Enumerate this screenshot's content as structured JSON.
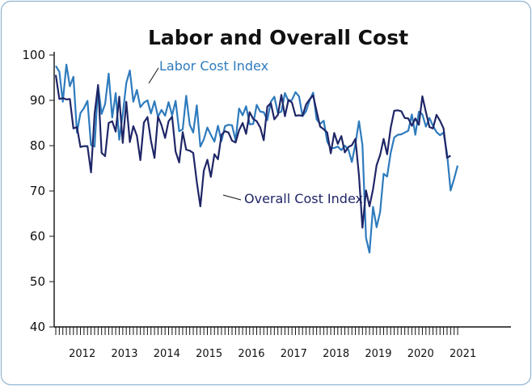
{
  "chart_data": {
    "type": "line",
    "title": "Labor and Overall Cost",
    "xlabel": "",
    "ylabel": "",
    "ylim": [
      40,
      100
    ],
    "yticks": [
      40,
      50,
      60,
      70,
      80,
      90,
      100
    ],
    "x_start": "2011-11",
    "grid": false,
    "years": [
      "2012",
      "2013",
      "2014",
      "2015",
      "2016",
      "2017",
      "2018",
      "2019",
      "2020",
      "2021"
    ],
    "series": [
      {
        "name": "Labor Cost Index",
        "color": "#2e7bbd",
        "values": [
          97.6,
          96.3,
          89.7,
          97.9,
          93.1,
          95.2,
          82.9,
          87.2,
          88.3,
          89.9,
          80.1,
          79.8,
          93.2,
          87.0,
          89.2,
          95.9,
          86.2,
          91.6,
          81.3,
          86.9,
          93.8,
          96.6,
          89.7,
          92.3,
          88.5,
          89.5,
          90.0,
          87.1,
          89.8,
          86.4,
          87.9,
          86.6,
          89.6,
          86.7,
          89.9,
          83.2,
          83.6,
          91.0,
          84.6,
          82.9,
          88.9,
          79.8,
          81.4,
          84.0,
          82.4,
          80.9,
          84.4,
          81.0,
          84.3,
          84.6,
          84.5,
          81.1,
          88.2,
          86.7,
          88.7,
          84.7,
          84.8,
          89.0,
          87.5,
          87.4,
          85.6,
          89.7,
          90.8,
          87.2,
          87.5,
          91.6,
          89.8,
          90.1,
          91.8,
          90.9,
          86.5,
          87.6,
          90.0,
          91.7,
          85.8,
          84.8,
          85.5,
          80.9,
          79.4,
          79.5,
          79.8,
          79.0,
          80.0,
          79.1,
          76.4,
          80.4,
          85.4,
          80.1,
          59.7,
          56.4,
          66.5,
          62.0,
          65.3,
          73.8,
          73.2,
          78.4,
          81.8,
          82.4,
          82.5,
          82.9,
          83.3,
          86.9,
          82.4,
          87.5,
          86.9,
          84.2,
          86.1,
          84.4,
          83.0,
          82.3,
          82.9,
          78.1,
          70.1,
          72.7,
          75.6
        ],
        "label_text": "Labor Cost Index"
      },
      {
        "name": "Overall Cost Index",
        "color": "#1f2666",
        "values": [
          95.6,
          90.3,
          90.5,
          90.2,
          90.3,
          83.8,
          84.1,
          79.7,
          79.9,
          79.9,
          74.1,
          87.0,
          93.4,
          78.4,
          77.7,
          85.0,
          85.4,
          83.1,
          90.8,
          80.6,
          89.7,
          80.8,
          84.3,
          82.2,
          76.8,
          85.1,
          86.3,
          81.1,
          77.3,
          86.4,
          84.5,
          81.7,
          85.4,
          86.4,
          78.7,
          76.3,
          83.0,
          79.1,
          78.9,
          78.4,
          72.0,
          66.6,
          74.5,
          76.9,
          73.1,
          78.1,
          77.0,
          82.4,
          83.2,
          82.9,
          81.1,
          80.7,
          83.4,
          85.0,
          82.6,
          87.4,
          85.9,
          85.4,
          84.0,
          81.2,
          88.6,
          89.4,
          85.8,
          86.8,
          91.2,
          86.5,
          90.1,
          89.5,
          86.6,
          86.7,
          86.6,
          89.1,
          90.2,
          91.1,
          87.6,
          84.2,
          83.6,
          82.9,
          78.3,
          82.8,
          80.4,
          82.1,
          78.5,
          79.7,
          80.1,
          81.5,
          73.4,
          61.9,
          70.1,
          66.6,
          70.4,
          75.7,
          77.9,
          81.5,
          78.1,
          83.9,
          87.7,
          87.8,
          87.6,
          86.1,
          86.0,
          84.4,
          86.0,
          84.6,
          90.9,
          87.4,
          84.1,
          83.8,
          86.8,
          85.5,
          83.8,
          77.3,
          77.8
        ],
        "label_text": "Overall Cost Index"
      }
    ]
  }
}
